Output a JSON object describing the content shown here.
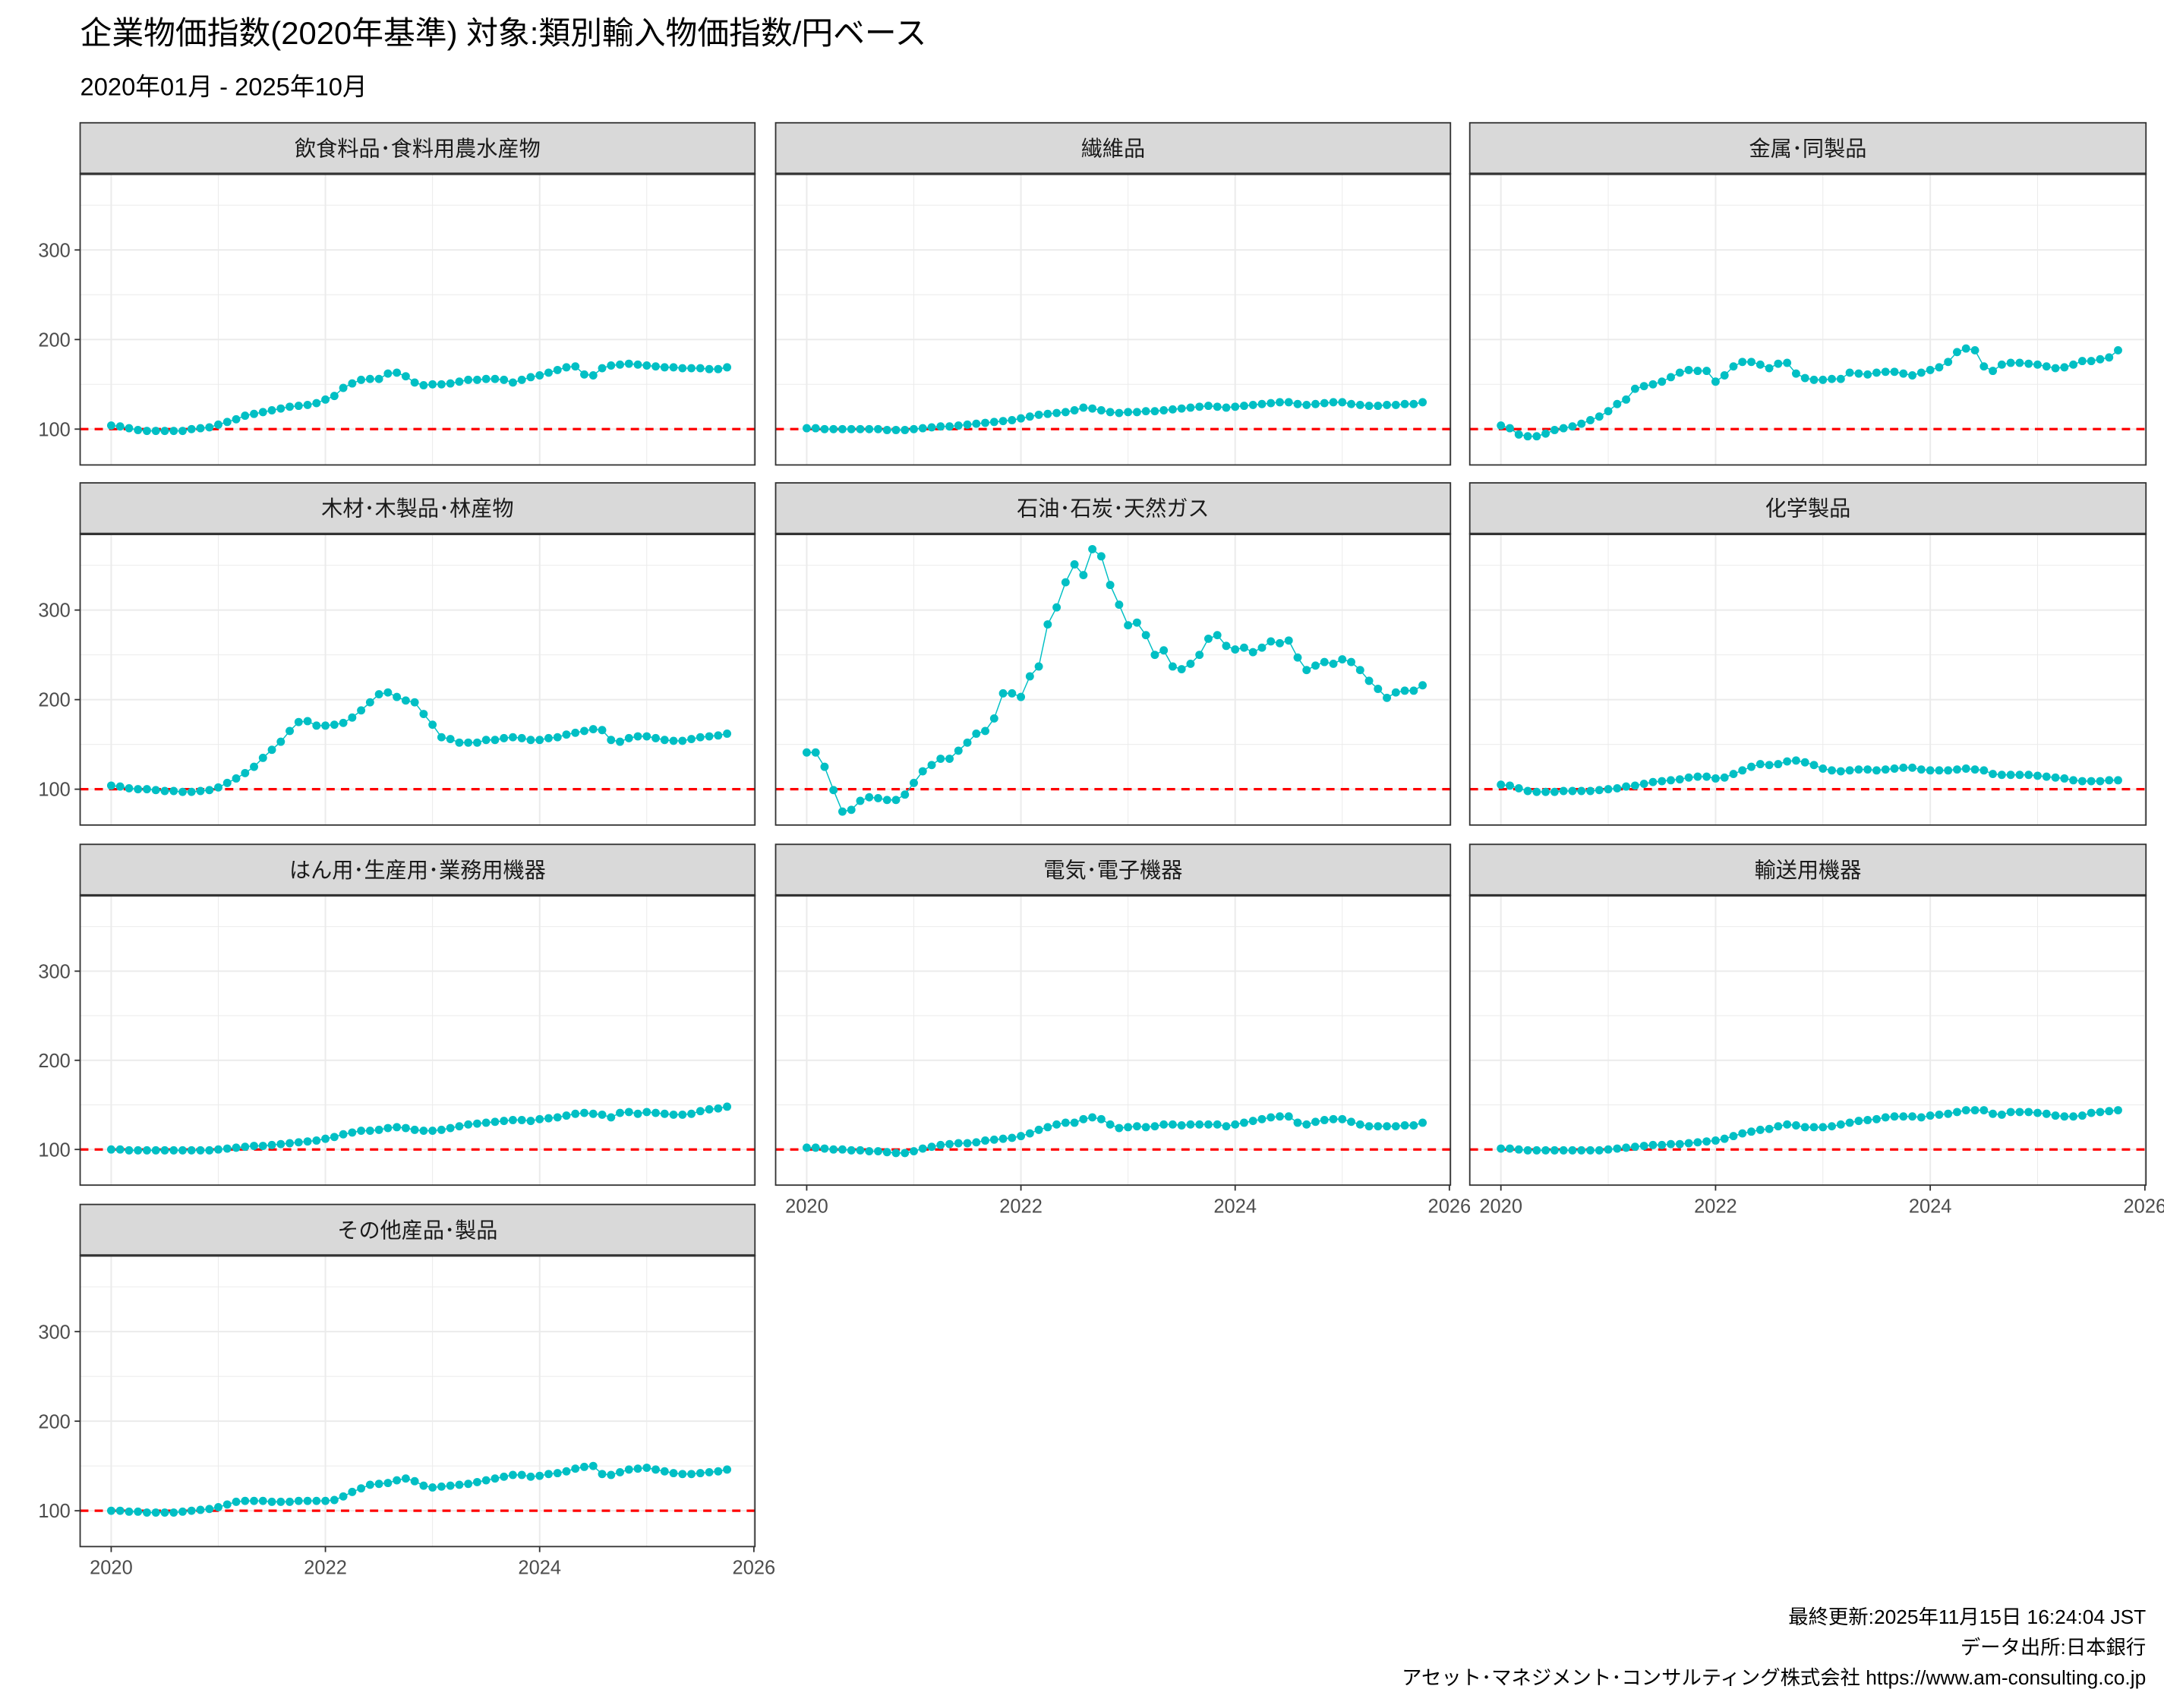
{
  "header": {
    "title": "企業物価指数(2020年基準) 対象:類別輸入物価指数/円ベース",
    "subtitle": "2020年01月 - 2025年10月"
  },
  "footer": {
    "updated": "最終更新:2025年11月15日 16:24:04 JST",
    "source": "データ出所:日本銀行",
    "credit": "アセット･マネジメント･コンサルティング株式会社 https://www.am-consulting.co.jp"
  },
  "colors": {
    "series": "#00BFC4",
    "reference_line": "#FF0000",
    "strip_fill": "#D9D9D9",
    "grid": "#EBEBEB"
  },
  "chart_data": {
    "type": "line",
    "faceted": true,
    "x_start": "2020-01",
    "x_frequency": "monthly",
    "x_ticks": [
      "2020",
      "2022",
      "2024",
      "2026"
    ],
    "y_ticks": [
      "100",
      "200",
      "300"
    ],
    "xlim": [
      2019.71,
      2026.01
    ],
    "ylim": [
      60,
      385
    ],
    "reference_line": 100,
    "grid": true,
    "legend": "none",
    "panels": [
      {
        "name": "飲食料品･食料用農水産物",
        "values": [
          104,
          103,
          101,
          99,
          98,
          98,
          98,
          98,
          98,
          100,
          101,
          102,
          105,
          108,
          111,
          115,
          117,
          119,
          121,
          123,
          125,
          126,
          127,
          129,
          133,
          137,
          146,
          151,
          155,
          156,
          156,
          162,
          163,
          159,
          152,
          149,
          150,
          150,
          151,
          153,
          155,
          155,
          156,
          156,
          155,
          152,
          155,
          158,
          160,
          163,
          166,
          169,
          170,
          161,
          160,
          168,
          171,
          172,
          173,
          172,
          171,
          170,
          169,
          169,
          168,
          168,
          168,
          167,
          167,
          169
        ]
      },
      {
        "name": "繊維品",
        "values": [
          101,
          101,
          100,
          100,
          100,
          100,
          100,
          100,
          100,
          99,
          99,
          99,
          100,
          101,
          102,
          103,
          103,
          104,
          105,
          106,
          107,
          108,
          109,
          110,
          112,
          114,
          116,
          117,
          118,
          119,
          121,
          124,
          123,
          121,
          119,
          118,
          119,
          119,
          120,
          120,
          121,
          122,
          123,
          124,
          125,
          126,
          125,
          124,
          125,
          126,
          127,
          128,
          129,
          130,
          130,
          128,
          127,
          128,
          129,
          130,
          130,
          128,
          127,
          126,
          126,
          127,
          127,
          128,
          128,
          130
        ]
      },
      {
        "name": "金属･同製品",
        "values": [
          104,
          101,
          94,
          92,
          92,
          95,
          99,
          101,
          103,
          106,
          110,
          114,
          120,
          128,
          133,
          145,
          148,
          150,
          153,
          158,
          163,
          166,
          165,
          165,
          153,
          160,
          170,
          175,
          175,
          172,
          168,
          173,
          174,
          162,
          157,
          155,
          155,
          156,
          156,
          163,
          162,
          161,
          163,
          164,
          164,
          162,
          160,
          163,
          166,
          169,
          175,
          186,
          190,
          188,
          170,
          165,
          172,
          174,
          174,
          173,
          172,
          170,
          168,
          169,
          172,
          176,
          176,
          178,
          180,
          188
        ]
      },
      {
        "name": "木材･木製品･林産物",
        "values": [
          104,
          103,
          101,
          100,
          100,
          99,
          98,
          98,
          97,
          97,
          98,
          99,
          102,
          107,
          112,
          118,
          125,
          135,
          144,
          153,
          165,
          175,
          176,
          171,
          171,
          172,
          174,
          180,
          188,
          197,
          206,
          208,
          203,
          199,
          197,
          184,
          172,
          158,
          156,
          152,
          152,
          152,
          155,
          155,
          157,
          158,
          157,
          155,
          155,
          157,
          158,
          161,
          163,
          165,
          167,
          166,
          155,
          153,
          157,
          159,
          159,
          157,
          155,
          154,
          154,
          156,
          158,
          159,
          160,
          162
        ]
      },
      {
        "name": "石油･石炭･天然ガス",
        "values": [
          141,
          141,
          125,
          99,
          75,
          77,
          87,
          91,
          90,
          88,
          88,
          94,
          107,
          120,
          127,
          134,
          134,
          143,
          152,
          162,
          165,
          179,
          207,
          207,
          203,
          226,
          237,
          284,
          303,
          331,
          351,
          339,
          368,
          360,
          328,
          306,
          283,
          286,
          272,
          250,
          255,
          237,
          234,
          240,
          250,
          268,
          272,
          260,
          256,
          258,
          253,
          258,
          265,
          263,
          266,
          247,
          233,
          238,
          242,
          240,
          245,
          242,
          233,
          221,
          212,
          202,
          208,
          210,
          210,
          216
        ]
      },
      {
        "name": "化学製品",
        "values": [
          105,
          104,
          101,
          98,
          97,
          97,
          97,
          98,
          98,
          98,
          98,
          99,
          100,
          101,
          103,
          104,
          106,
          108,
          109,
          110,
          111,
          113,
          114,
          114,
          112,
          113,
          117,
          121,
          125,
          128,
          127,
          128,
          131,
          132,
          130,
          127,
          123,
          121,
          120,
          121,
          122,
          122,
          121,
          122,
          123,
          124,
          124,
          122,
          121,
          121,
          121,
          122,
          123,
          122,
          121,
          117,
          116,
          116,
          116,
          116,
          115,
          114,
          113,
          112,
          110,
          109,
          109,
          109,
          110,
          110
        ]
      },
      {
        "name": "はん用･生産用･業務用機器",
        "values": [
          100,
          100,
          99,
          99,
          99,
          99,
          99,
          99,
          99,
          99,
          99,
          99,
          100,
          101,
          102,
          103,
          104,
          104,
          105,
          106,
          107,
          108,
          109,
          110,
          112,
          114,
          117,
          119,
          121,
          121,
          122,
          124,
          125,
          124,
          122,
          121,
          121,
          122,
          124,
          126,
          128,
          129,
          130,
          131,
          132,
          133,
          133,
          132,
          134,
          135,
          136,
          138,
          140,
          141,
          140,
          139,
          136,
          141,
          142,
          140,
          142,
          141,
          140,
          139,
          139,
          140,
          143,
          145,
          146,
          148
        ]
      },
      {
        "name": "電気･電子機器",
        "values": [
          102,
          102,
          101,
          100,
          100,
          99,
          99,
          98,
          98,
          97,
          96,
          96,
          98,
          101,
          103,
          105,
          106,
          107,
          107,
          108,
          110,
          111,
          112,
          113,
          115,
          118,
          122,
          125,
          128,
          130,
          130,
          134,
          136,
          134,
          128,
          124,
          125,
          126,
          125,
          126,
          128,
          128,
          127,
          128,
          128,
          128,
          128,
          126,
          128,
          130,
          132,
          134,
          136,
          137,
          137,
          130,
          128,
          131,
          133,
          134,
          134,
          131,
          128,
          126,
          126,
          126,
          126,
          127,
          127,
          130
        ]
      },
      {
        "name": "輸送用機器",
        "values": [
          101,
          101,
          100,
          99,
          99,
          99,
          99,
          99,
          99,
          99,
          99,
          99,
          100,
          101,
          102,
          103,
          104,
          105,
          105,
          106,
          106,
          107,
          108,
          109,
          110,
          112,
          115,
          118,
          120,
          122,
          123,
          126,
          128,
          127,
          125,
          125,
          125,
          126,
          128,
          130,
          132,
          133,
          134,
          136,
          137,
          137,
          137,
          136,
          138,
          139,
          140,
          142,
          144,
          144,
          144,
          140,
          139,
          142,
          142,
          142,
          141,
          140,
          138,
          137,
          137,
          138,
          141,
          142,
          143,
          144
        ]
      },
      {
        "name": "その他産品･製品",
        "values": [
          100,
          100,
          99,
          99,
          98,
          98,
          98,
          98,
          99,
          100,
          101,
          102,
          104,
          107,
          110,
          111,
          111,
          111,
          110,
          110,
          110,
          111,
          111,
          111,
          111,
          112,
          116,
          121,
          125,
          129,
          130,
          131,
          134,
          136,
          133,
          128,
          126,
          127,
          128,
          129,
          130,
          132,
          134,
          136,
          138,
          140,
          140,
          138,
          139,
          141,
          142,
          144,
          147,
          149,
          150,
          141,
          140,
          143,
          146,
          147,
          148,
          146,
          144,
          142,
          141,
          141,
          142,
          143,
          144,
          146
        ]
      }
    ]
  }
}
